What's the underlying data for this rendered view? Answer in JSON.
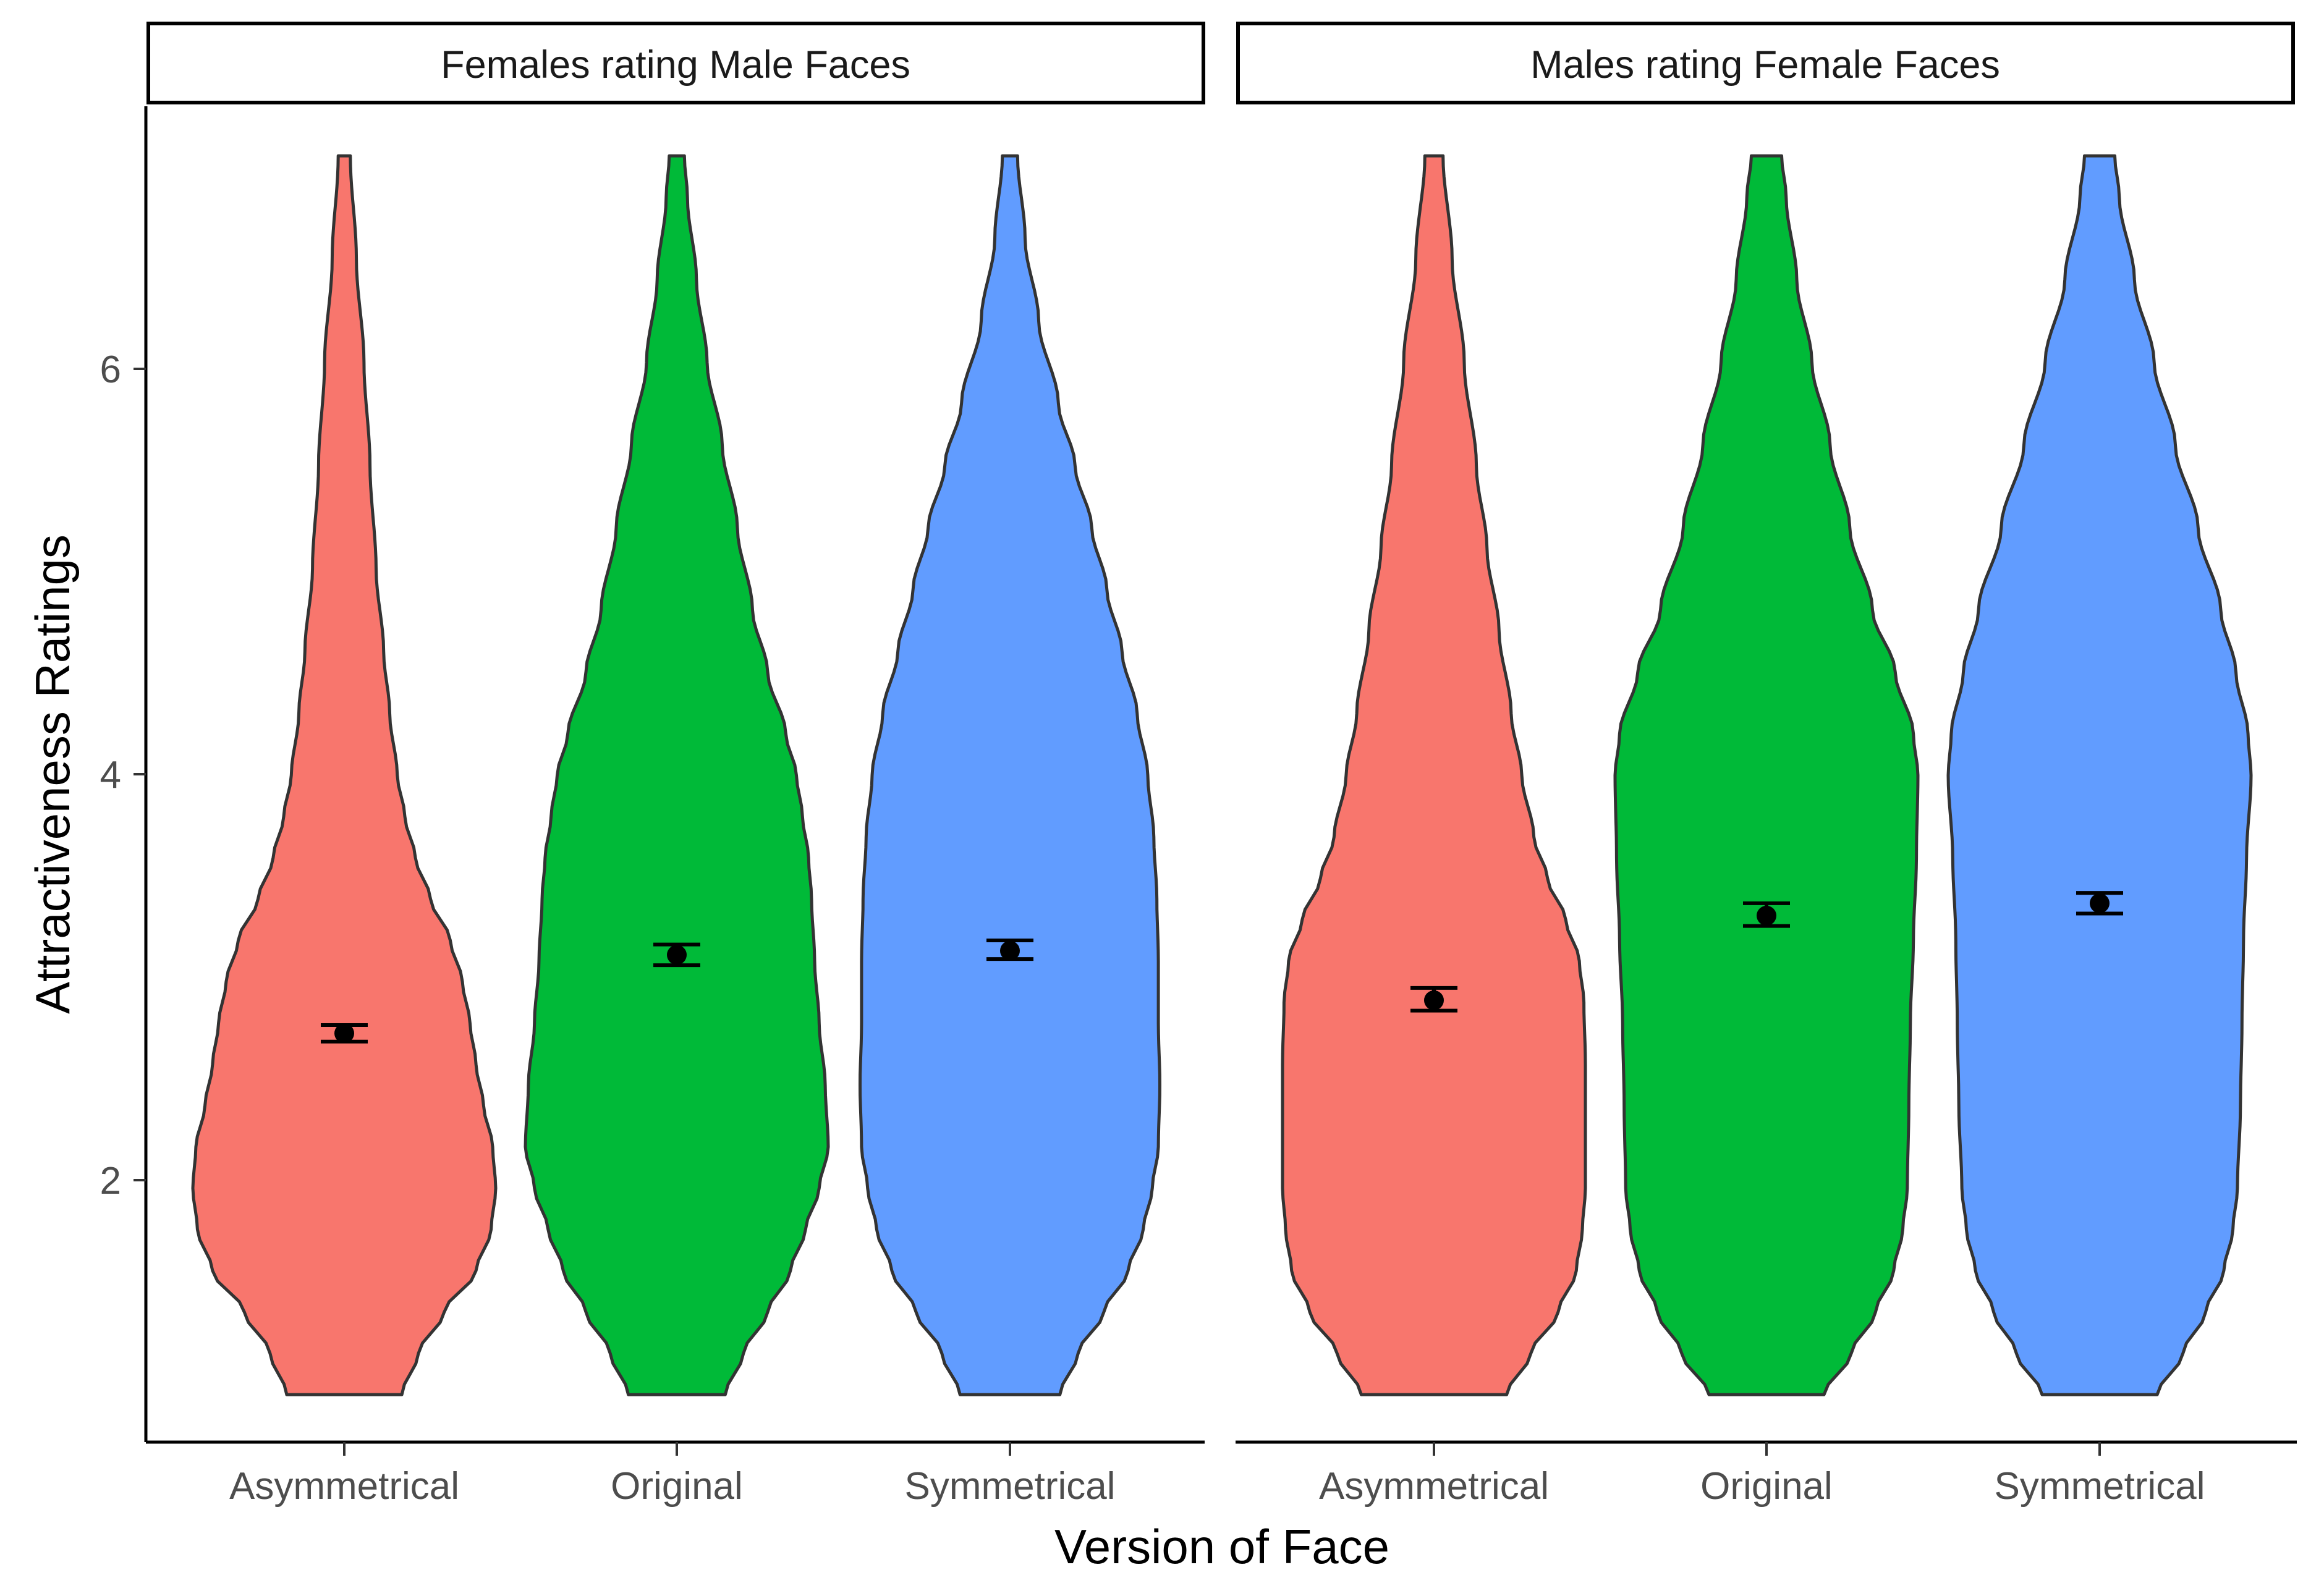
{
  "chart_data": {
    "type": "violin",
    "xlabel": "Version of Face",
    "ylabel": "Attractiveness Ratings",
    "categories": [
      "Asymmetrical",
      "Original",
      "Symmetrical"
    ],
    "colors": {
      "Asymmetrical": "#F8766D",
      "Original": "#00BA38",
      "Symmetrical": "#619CFF"
    },
    "ylim": [
      0.77,
      7.24
    ],
    "yticks": [
      "2",
      "4",
      "6"
    ],
    "grid": false,
    "legend": "none",
    "error_bars": "mean ± error",
    "facets": [
      {
        "label": "Females rating Male Faces",
        "violins": [
          {
            "category": "Asymmetrical",
            "mean": 2.75,
            "ci": [
              2.71,
              2.79
            ],
            "range": [
              1,
              7
            ],
            "profile": [
              [
                1,
                0.38
              ],
              [
                1.2,
                0.49
              ],
              [
                1.4,
                0.66
              ],
              [
                1.6,
                0.87
              ],
              [
                1.8,
                0.97
              ],
              [
                2,
                1.0
              ],
              [
                2.2,
                0.98
              ],
              [
                2.4,
                0.92
              ],
              [
                2.6,
                0.87
              ],
              [
                2.8,
                0.83
              ],
              [
                3.0,
                0.78
              ],
              [
                3.2,
                0.7
              ],
              [
                3.4,
                0.57
              ],
              [
                3.6,
                0.47
              ],
              [
                3.8,
                0.4
              ],
              [
                4,
                0.35
              ],
              [
                4.3,
                0.3
              ],
              [
                4.6,
                0.26
              ],
              [
                5,
                0.21
              ],
              [
                5.5,
                0.17
              ],
              [
                6,
                0.13
              ],
              [
                6.5,
                0.08
              ],
              [
                7,
                0.04
              ]
            ]
          },
          {
            "category": "Original",
            "mean": 3.13,
            "ci": [
              3.08,
              3.18
            ],
            "range": [
              1,
              7
            ],
            "profile": [
              [
                1,
                0.32
              ],
              [
                1.2,
                0.44
              ],
              [
                1.4,
                0.6
              ],
              [
                1.6,
                0.75
              ],
              [
                1.8,
                0.85
              ],
              [
                2,
                0.94
              ],
              [
                2.2,
                1.0
              ],
              [
                2.5,
                0.98
              ],
              [
                2.8,
                0.94
              ],
              [
                3.1,
                0.91
              ],
              [
                3.4,
                0.89
              ],
              [
                3.6,
                0.87
              ],
              [
                3.8,
                0.83
              ],
              [
                4,
                0.79
              ],
              [
                4.2,
                0.72
              ],
              [
                4.5,
                0.6
              ],
              [
                4.8,
                0.5
              ],
              [
                5.2,
                0.4
              ],
              [
                5.6,
                0.3
              ],
              [
                6,
                0.2
              ],
              [
                6.4,
                0.13
              ],
              [
                6.8,
                0.07
              ],
              [
                7,
                0.05
              ]
            ]
          },
          {
            "category": "Symmetrical",
            "mean": 3.15,
            "ci": [
              3.11,
              3.2
            ],
            "range": [
              1,
              7
            ],
            "profile": [
              [
                1,
                0.33
              ],
              [
                1.2,
                0.45
              ],
              [
                1.4,
                0.62
              ],
              [
                1.6,
                0.78
              ],
              [
                1.8,
                0.88
              ],
              [
                2,
                0.94
              ],
              [
                2.2,
                0.98
              ],
              [
                2.5,
                0.99
              ],
              [
                2.8,
                0.98
              ],
              [
                3.1,
                0.98
              ],
              [
                3.4,
                0.97
              ],
              [
                3.7,
                0.95
              ],
              [
                4,
                0.91
              ],
              [
                4.3,
                0.84
              ],
              [
                4.6,
                0.74
              ],
              [
                4.9,
                0.64
              ],
              [
                5.2,
                0.54
              ],
              [
                5.5,
                0.43
              ],
              [
                5.8,
                0.32
              ],
              [
                6.2,
                0.19
              ],
              [
                6.6,
                0.1
              ],
              [
                7,
                0.05
              ]
            ]
          }
        ]
      },
      {
        "label": "Males rating Female Faces",
        "violins": [
          {
            "category": "Asymmetrical",
            "mean": 2.91,
            "ci": [
              2.86,
              2.97
            ],
            "range": [
              1,
              7
            ],
            "profile": [
              [
                1,
                0.48
              ],
              [
                1.2,
                0.64
              ],
              [
                1.4,
                0.82
              ],
              [
                1.6,
                0.94
              ],
              [
                1.8,
                0.98
              ],
              [
                2,
                1.0
              ],
              [
                2.3,
                1.0
              ],
              [
                2.6,
                1.0
              ],
              [
                2.9,
                0.99
              ],
              [
                3.1,
                0.96
              ],
              [
                3.3,
                0.87
              ],
              [
                3.5,
                0.75
              ],
              [
                3.7,
                0.66
              ],
              [
                4,
                0.58
              ],
              [
                4.3,
                0.51
              ],
              [
                4.7,
                0.43
              ],
              [
                5.1,
                0.35
              ],
              [
                5.5,
                0.28
              ],
              [
                6,
                0.2
              ],
              [
                6.5,
                0.12
              ],
              [
                7,
                0.06
              ]
            ]
          },
          {
            "category": "Original",
            "mean": 3.32,
            "ci": [
              3.27,
              3.38
            ],
            "range": [
              1,
              7
            ],
            "profile": [
              [
                1,
                0.38
              ],
              [
                1.2,
                0.56
              ],
              [
                1.4,
                0.72
              ],
              [
                1.6,
                0.84
              ],
              [
                1.8,
                0.9
              ],
              [
                2,
                0.93
              ],
              [
                2.4,
                0.94
              ],
              [
                2.8,
                0.95
              ],
              [
                3.2,
                0.97
              ],
              [
                3.6,
                0.99
              ],
              [
                4,
                1.0
              ],
              [
                4.2,
                0.97
              ],
              [
                4.5,
                0.85
              ],
              [
                4.8,
                0.7
              ],
              [
                5.2,
                0.55
              ],
              [
                5.6,
                0.42
              ],
              [
                6,
                0.3
              ],
              [
                6.4,
                0.2
              ],
              [
                6.8,
                0.13
              ],
              [
                7,
                0.1
              ]
            ]
          },
          {
            "category": "Symmetrical",
            "mean": 3.38,
            "ci": [
              3.33,
              3.43
            ],
            "range": [
              1,
              7
            ],
            "profile": [
              [
                1,
                0.38
              ],
              [
                1.2,
                0.55
              ],
              [
                1.4,
                0.7
              ],
              [
                1.6,
                0.82
              ],
              [
                1.8,
                0.88
              ],
              [
                2,
                0.91
              ],
              [
                2.4,
                0.93
              ],
              [
                2.8,
                0.94
              ],
              [
                3.2,
                0.95
              ],
              [
                3.6,
                0.97
              ],
              [
                4,
                1.0
              ],
              [
                4.2,
                0.98
              ],
              [
                4.5,
                0.9
              ],
              [
                4.8,
                0.8
              ],
              [
                5.2,
                0.65
              ],
              [
                5.6,
                0.5
              ],
              [
                6,
                0.36
              ],
              [
                6.4,
                0.23
              ],
              [
                6.8,
                0.13
              ],
              [
                7,
                0.1
              ]
            ]
          }
        ]
      }
    ]
  }
}
